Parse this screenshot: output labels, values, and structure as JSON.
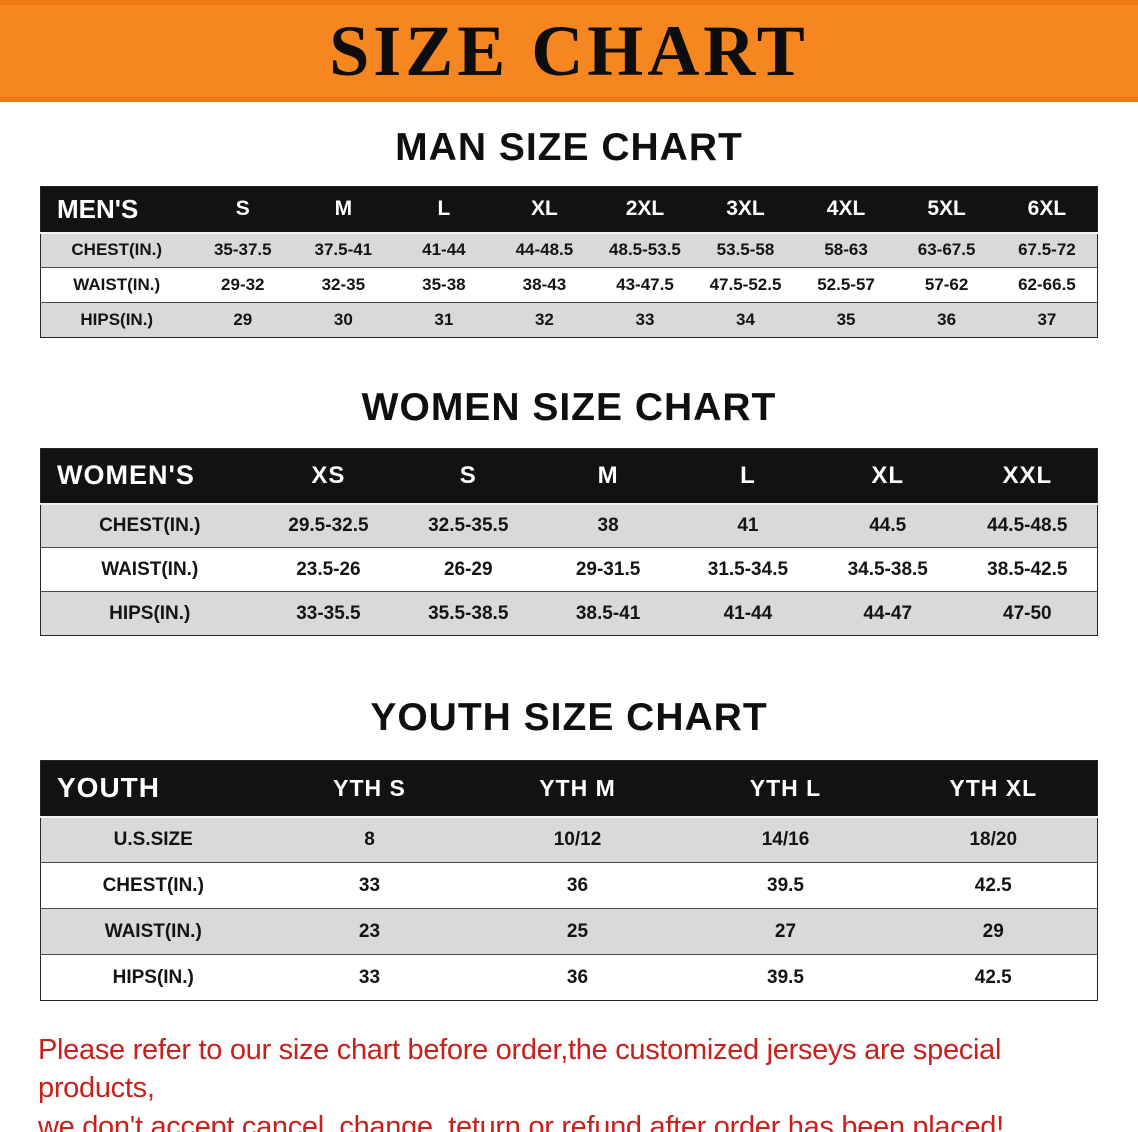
{
  "banner": {
    "title": "SIZE CHART"
  },
  "sections": [
    {
      "heading": "MAN SIZE CHART",
      "table": {
        "header": [
          "MEN'S",
          "S",
          "M",
          "L",
          "XL",
          "2XL",
          "3XL",
          "4XL",
          "5XL",
          "6XL"
        ],
        "rows": [
          [
            "CHEST(IN.)",
            "35-37.5",
            "37.5-41",
            "41-44",
            "44-48.5",
            "48.5-53.5",
            "53.5-58",
            "58-63",
            "63-67.5",
            "67.5-72"
          ],
          [
            "WAIST(IN.)",
            "29-32",
            "32-35",
            "35-38",
            "38-43",
            "43-47.5",
            "47.5-52.5",
            "52.5-57",
            "57-62",
            "62-66.5"
          ],
          [
            "HIPS(IN.)",
            "29",
            "30",
            "31",
            "32",
            "33",
            "34",
            "35",
            "36",
            "37"
          ]
        ]
      }
    },
    {
      "heading": "WOMEN SIZE CHART",
      "table": {
        "header": [
          "WOMEN'S",
          "XS",
          "S",
          "M",
          "L",
          "XL",
          "XXL"
        ],
        "rows": [
          [
            "CHEST(IN.)",
            "29.5-32.5",
            "32.5-35.5",
            "38",
            "41",
            "44.5",
            "44.5-48.5"
          ],
          [
            "WAIST(IN.)",
            "23.5-26",
            "26-29",
            "29-31.5",
            "31.5-34.5",
            "34.5-38.5",
            "38.5-42.5"
          ],
          [
            "HIPS(IN.)",
            "33-35.5",
            "35.5-38.5",
            "38.5-41",
            "41-44",
            "44-47",
            "47-50"
          ]
        ]
      }
    },
    {
      "heading": "YOUTH SIZE CHART",
      "table": {
        "header": [
          "YOUTH",
          "YTH S",
          "YTH M",
          "YTH L",
          "YTH XL"
        ],
        "rows": [
          [
            "U.S.SIZE",
            "8",
            "10/12",
            "14/16",
            "18/20"
          ],
          [
            "CHEST(IN.)",
            "33",
            "36",
            "39.5",
            "42.5"
          ],
          [
            "WAIST(IN.)",
            "23",
            "25",
            "27",
            "29"
          ],
          [
            "HIPS(IN.)",
            "33",
            "36",
            "39.5",
            "42.5"
          ]
        ]
      }
    }
  ],
  "footer": {
    "lines": [
      "Please refer to our size chart before order,the customized jerseys are special products,",
      "we don't accept cancel, change, teturn or refund after order has been placed!"
    ]
  },
  "colors": {
    "banner_orange": "#f6861f",
    "table_header_black": "#121212",
    "row_gray": "#d9d9d9",
    "notice_red": "#c9201b"
  }
}
